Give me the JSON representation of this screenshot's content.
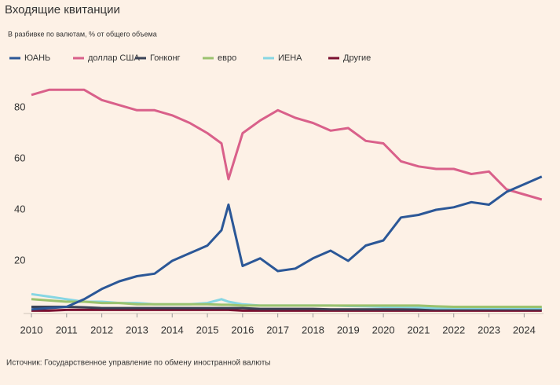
{
  "chart_data": {
    "type": "line",
    "title": "Входящие квитанции",
    "subtitle": "В разбивке по валютам, % от общего объема",
    "source": "Источник: Государственное управление по обмену иностранной валюты",
    "x": [
      2010,
      2010.5,
      2011,
      2011.5,
      2012,
      2012.5,
      2013,
      2013.5,
      2014,
      2014.5,
      2015,
      2015.4,
      2015.6,
      2016,
      2016.5,
      2017,
      2017.5,
      2018,
      2018.5,
      2019,
      2019.5,
      2020,
      2020.5,
      2021,
      2021.5,
      2022,
      2022.5,
      2023,
      2023.5,
      2024,
      2024.5
    ],
    "xlim": [
      2010,
      2024.55
    ],
    "xticks": [
      2010,
      2011,
      2012,
      2013,
      2014,
      2015,
      2016,
      2017,
      2018,
      2019,
      2020,
      2021,
      2022,
      2023,
      2024
    ],
    "ylim": [
      0,
      88
    ],
    "yticks": [
      20,
      40,
      60,
      80
    ],
    "series": [
      {
        "name": "ЮАНЬ",
        "color": "#2b5797",
        "values": [
          1,
          1.5,
          2,
          5,
          9,
          12,
          14,
          15,
          20,
          23,
          26,
          32,
          42,
          18,
          21,
          16,
          17,
          21,
          24,
          20,
          26,
          28,
          37,
          38,
          40,
          41,
          43,
          42,
          47,
          50,
          53
        ]
      },
      {
        "name": "доллар США",
        "color": "#d9608a",
        "values": [
          85,
          87,
          87,
          87,
          83,
          81,
          79,
          79,
          77,
          74,
          70,
          66,
          52,
          70,
          75,
          79,
          76,
          74,
          71,
          72,
          67,
          66,
          59,
          57,
          56,
          56,
          54,
          55,
          48,
          46,
          44
        ]
      },
      {
        "name": "Гонконг",
        "color": "#3a4256",
        "values": [
          2,
          2,
          2,
          1.8,
          1.5,
          1.5,
          1.5,
          1.5,
          1.5,
          1.5,
          1.5,
          1.5,
          1.5,
          1.5,
          1.2,
          1.2,
          1.2,
          1.2,
          1,
          1,
          1,
          1,
          1,
          1,
          1,
          1,
          1,
          1,
          1,
          1,
          1
        ]
      },
      {
        "name": "евро",
        "color": "#9bc26e",
        "values": [
          5,
          4.5,
          4,
          4,
          3.5,
          3.5,
          3,
          3,
          3,
          3,
          3,
          2.8,
          2.8,
          2.5,
          2.5,
          2.5,
          2.5,
          2.5,
          2.5,
          2.5,
          2.5,
          2.5,
          2.5,
          2.5,
          2.2,
          2,
          2,
          2,
          2,
          2,
          2
        ]
      },
      {
        "name": "ИЕНА",
        "color": "#86d6e3",
        "values": [
          7,
          6,
          5,
          4,
          4,
          3.5,
          3.5,
          3,
          3,
          3,
          3.5,
          5,
          4,
          3,
          2.5,
          2.5,
          2.5,
          2.5,
          2.5,
          2.3,
          2.2,
          2,
          2,
          1.8,
          1.5,
          1.5,
          1.5,
          1.5,
          1.5,
          1.5,
          1.5
        ]
      },
      {
        "name": "Другие",
        "color": "#7a1030",
        "values": [
          0.5,
          0.5,
          0.8,
          0.8,
          0.8,
          0.8,
          0.8,
          0.8,
          0.8,
          0.8,
          0.8,
          0.8,
          0.8,
          0.5,
          0.5,
          0.5,
          0.5,
          0.5,
          0.5,
          0.5,
          0.5,
          0.5,
          0.5,
          0.5,
          0.5,
          0.5,
          0.5,
          0.5,
          0.5,
          0.5,
          0.5
        ]
      }
    ]
  }
}
